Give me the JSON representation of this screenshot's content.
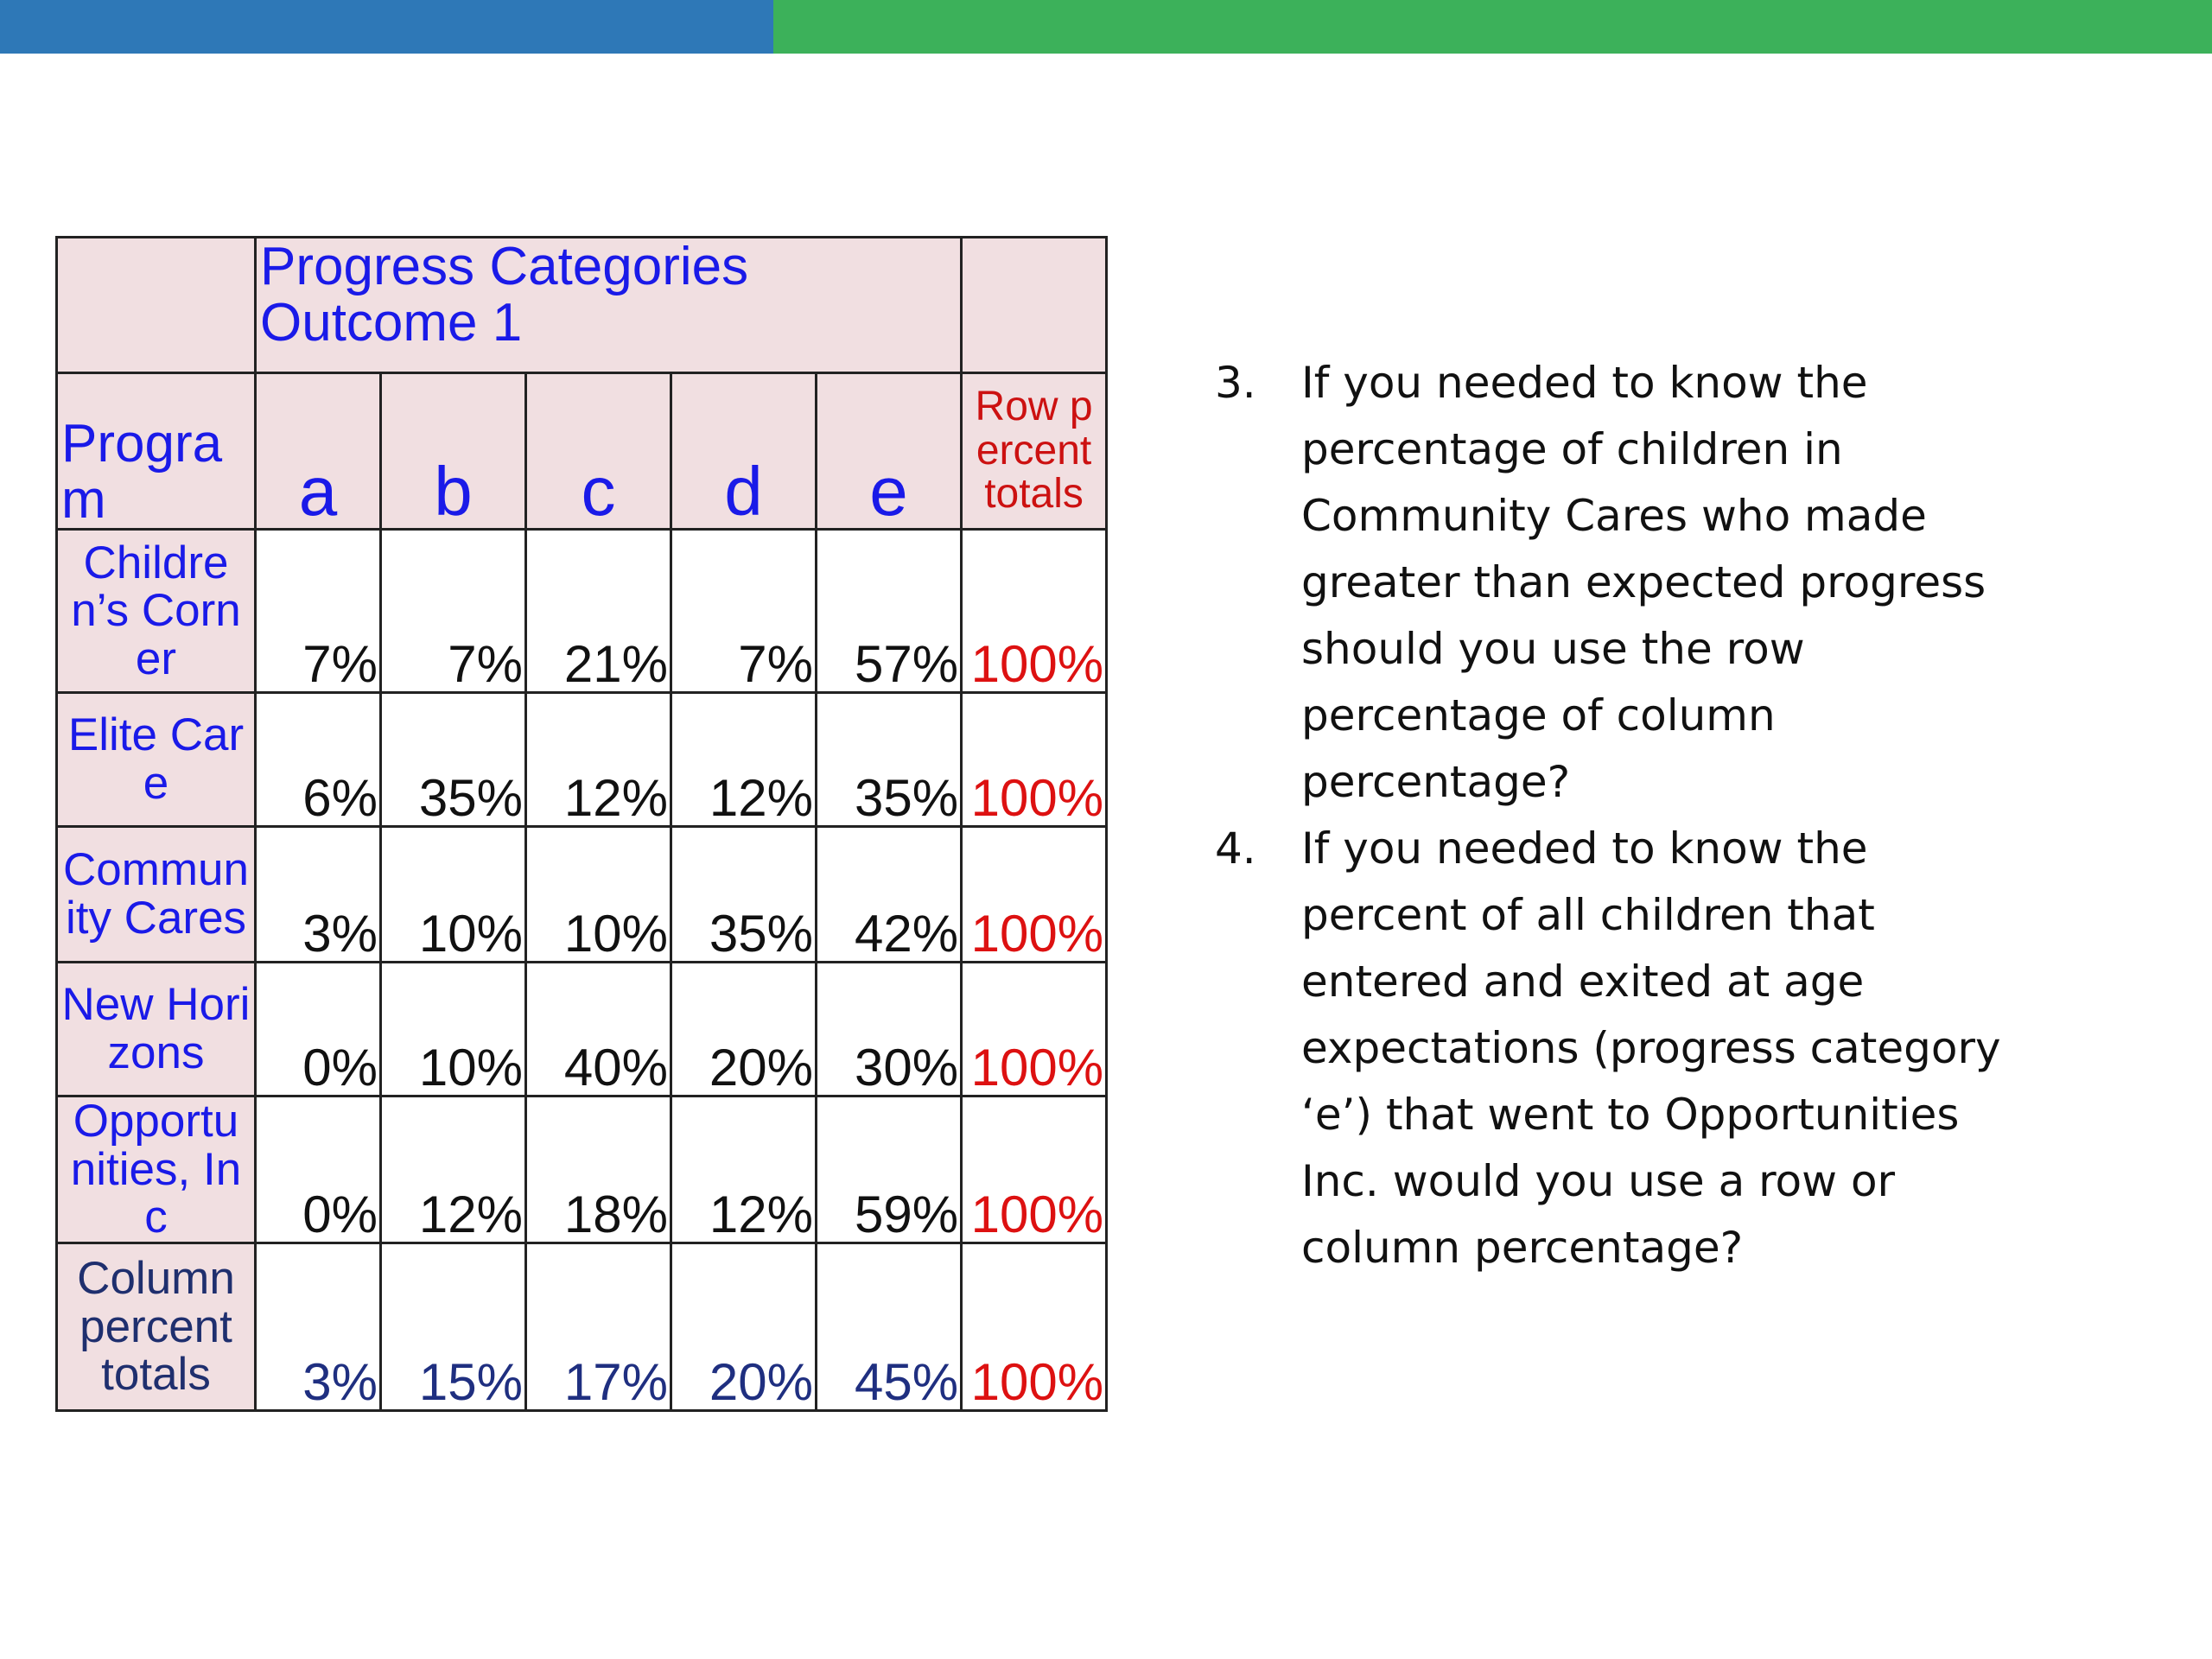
{
  "header": {
    "title": "Progress Categories Outcome 1"
  },
  "table": {
    "columns": [
      "Program",
      "a",
      "b",
      "c",
      "d",
      "e",
      "Row percent totals"
    ],
    "rows": [
      [
        "Children’s Corner",
        "7%",
        "7%",
        "21%",
        "7%",
        "57%",
        "100%"
      ],
      [
        "Elite Care",
        "6%",
        "35%",
        "12%",
        "12%",
        "35%",
        "100%"
      ],
      [
        "Community Cares",
        "3%",
        "10%",
        "10%",
        "35%",
        "42%",
        "100%"
      ],
      [
        "New Horizons",
        "0%",
        "10%",
        "40%",
        "20%",
        "30%",
        "100%"
      ],
      [
        "Opportunities, Inc",
        "0%",
        "12%",
        "18%",
        "12%",
        "59%",
        "100%"
      ]
    ],
    "footer": [
      "Column percent totals",
      "3%",
      "15%",
      "17%",
      "20%",
      "45%",
      "100%"
    ]
  },
  "questions": [
    {
      "number": "3.",
      "text": "If you needed to know the percentage of children in Community Cares who made greater than expected progress should you use the row percentage of column percentage?"
    },
    {
      "number": "4.",
      "text": "If you needed to know the percent of all children that entered and exited at age expectations (progress category ‘e’) that went to Opportunities Inc. would you use a row or column percentage?"
    }
  ]
}
